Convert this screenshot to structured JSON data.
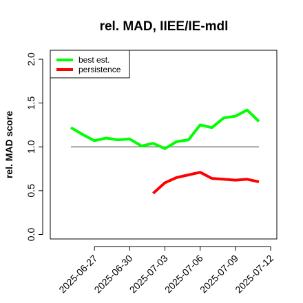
{
  "chart_data": {
    "type": "line",
    "title": "rel. MAD, IIEE/IE-mdl",
    "xlabel": "",
    "ylabel": "rel. MAD score",
    "ylim": [
      0,
      2
    ],
    "yticks": [
      "0.0",
      "0.5",
      "1.0",
      "1.5",
      "2.0"
    ],
    "ytick_values": [
      0,
      0.5,
      1.0,
      1.5,
      2.0
    ],
    "xticks": [
      "2025-06-27",
      "2025-06-30",
      "2025-07-03",
      "2025-07-06",
      "2025-07-09",
      "2025-07-12"
    ],
    "x": [
      "2025-06-25",
      "2025-06-26",
      "2025-06-27",
      "2025-06-28",
      "2025-06-29",
      "2025-06-30",
      "2025-07-01",
      "2025-07-02",
      "2025-07-03",
      "2025-07-04",
      "2025-07-05",
      "2025-07-06",
      "2025-07-07",
      "2025-07-08",
      "2025-07-09",
      "2025-07-10",
      "2025-07-11",
      "2025-07-12"
    ],
    "reference_line": 1.0,
    "series": [
      {
        "name": "best est.",
        "color": "#00ff00",
        "values": [
          1.22,
          1.14,
          1.07,
          1.1,
          1.08,
          1.09,
          1.01,
          1.04,
          0.98,
          1.06,
          1.08,
          1.25,
          1.22,
          1.33,
          1.35,
          1.42,
          1.29,
          null
        ]
      },
      {
        "name": "persistence",
        "color": "#ff0000",
        "values": [
          null,
          null,
          null,
          null,
          null,
          null,
          null,
          0.47,
          0.59,
          0.65,
          0.68,
          0.71,
          0.64,
          0.63,
          0.62,
          0.63,
          0.6,
          null
        ]
      }
    ],
    "legend_position": "top-left",
    "grid": false
  }
}
